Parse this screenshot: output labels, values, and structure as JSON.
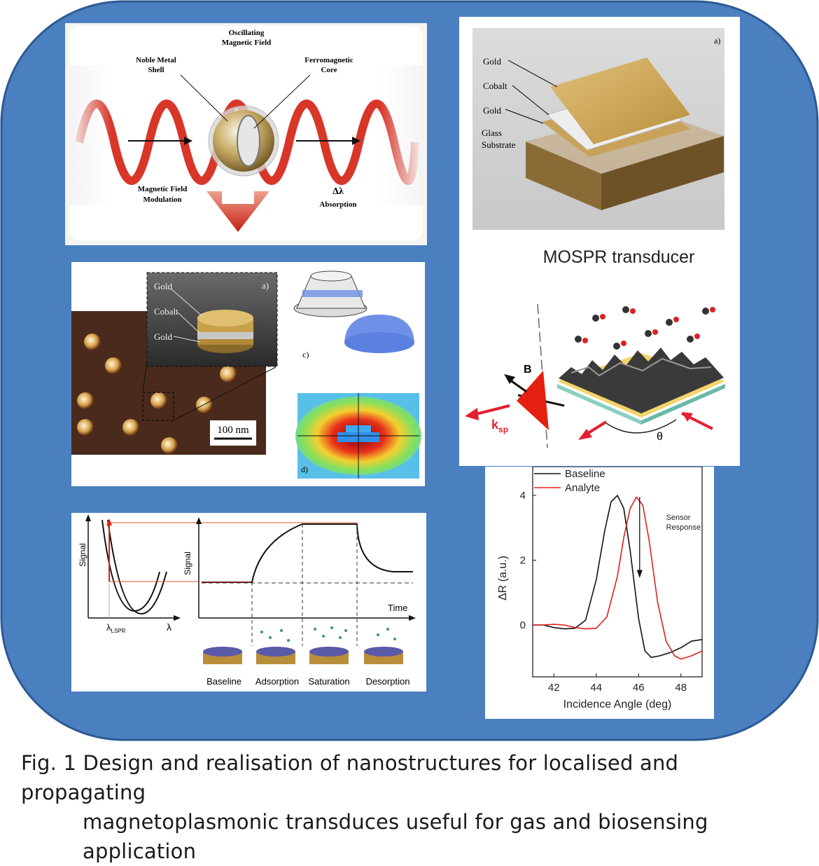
{
  "caption": {
    "line1": "Fig. 1 Design and realisation of nanostructures for localised and propagating",
    "line2": "magnetoplasmonic transduces useful for gas and biosensing application"
  },
  "colors": {
    "background_frame": "#4a7fc0",
    "wave_red": "#d9362a",
    "gold": "#c99a3a",
    "analyte": "#e0201e"
  },
  "panel_particle": {
    "label_field": "Oscillating\nMagnetic Field",
    "label_shell": "Noble Metal\nShell",
    "label_core": "Ferromagnetic\nCore",
    "label_modulation": "Magnetic Field\nModulation",
    "label_dl": "Δλ",
    "label_absorption": "Absorption"
  },
  "panel_mospr": {
    "tag": "a)",
    "layers": [
      "Gold",
      "Cobalt",
      "Gold",
      "Glass\nSubstrate"
    ],
    "title": "MOSPR transducer",
    "label_B": "B",
    "label_ksp": "k",
    "label_ksp_sub": "sp",
    "label_theta": "θ"
  },
  "panel_afm": {
    "tag_a": "a)",
    "layers": [
      "Gold",
      "Cobalt",
      "Gold"
    ],
    "scale": "100 nm",
    "tag_c": "c)",
    "tag_d": "d)"
  },
  "panel_signal": {
    "ylabel_left": "Signal",
    "xlabel_left": "λ",
    "lspr_label": "λ",
    "lspr_sub": "LSPR",
    "ylabel_right": "Signal",
    "xlabel_right": "Time",
    "stages": [
      "Baseline",
      "Adsorption",
      "Saturation",
      "Desorption"
    ]
  },
  "chart_data": {
    "type": "line",
    "xlabel": "Incidence Angle (deg)",
    "ylabel": "ΔR (a.u.)",
    "xlim": [
      41,
      49
    ],
    "ylim": [
      -1.6,
      4.5
    ],
    "xticks": [
      42,
      44,
      46,
      48
    ],
    "yticks": [
      0,
      2,
      4
    ],
    "annotation": "Sensor\nResponse",
    "legend_position": "top-left",
    "series": [
      {
        "name": "Baseline",
        "color": "#111111",
        "x": [
          41,
          41.5,
          42,
          42.5,
          43,
          43.5,
          44,
          44.4,
          44.7,
          45,
          45.3,
          45.6,
          46,
          46.3,
          46.6,
          47,
          47.5,
          48,
          48.5,
          49
        ],
        "y": [
          0,
          0,
          -0.08,
          -0.12,
          -0.1,
          0.15,
          1.4,
          2.9,
          3.8,
          4.0,
          3.6,
          2.3,
          0.2,
          -0.8,
          -1.0,
          -0.95,
          -0.85,
          -0.7,
          -0.5,
          -0.45
        ]
      },
      {
        "name": "Analyte",
        "color": "#e0201e",
        "x": [
          41,
          41.5,
          42,
          42.5,
          43,
          43.5,
          44,
          44.5,
          45,
          45.3,
          45.6,
          45.9,
          46.2,
          46.5,
          46.9,
          47.3,
          47.7,
          48,
          48.5,
          49
        ],
        "y": [
          0,
          0,
          0.02,
          0,
          -0.08,
          -0.12,
          -0.1,
          0.25,
          1.5,
          2.7,
          3.6,
          3.95,
          3.7,
          2.6,
          0.7,
          -0.5,
          -0.95,
          -1.05,
          -0.95,
          -0.8
        ]
      }
    ]
  }
}
